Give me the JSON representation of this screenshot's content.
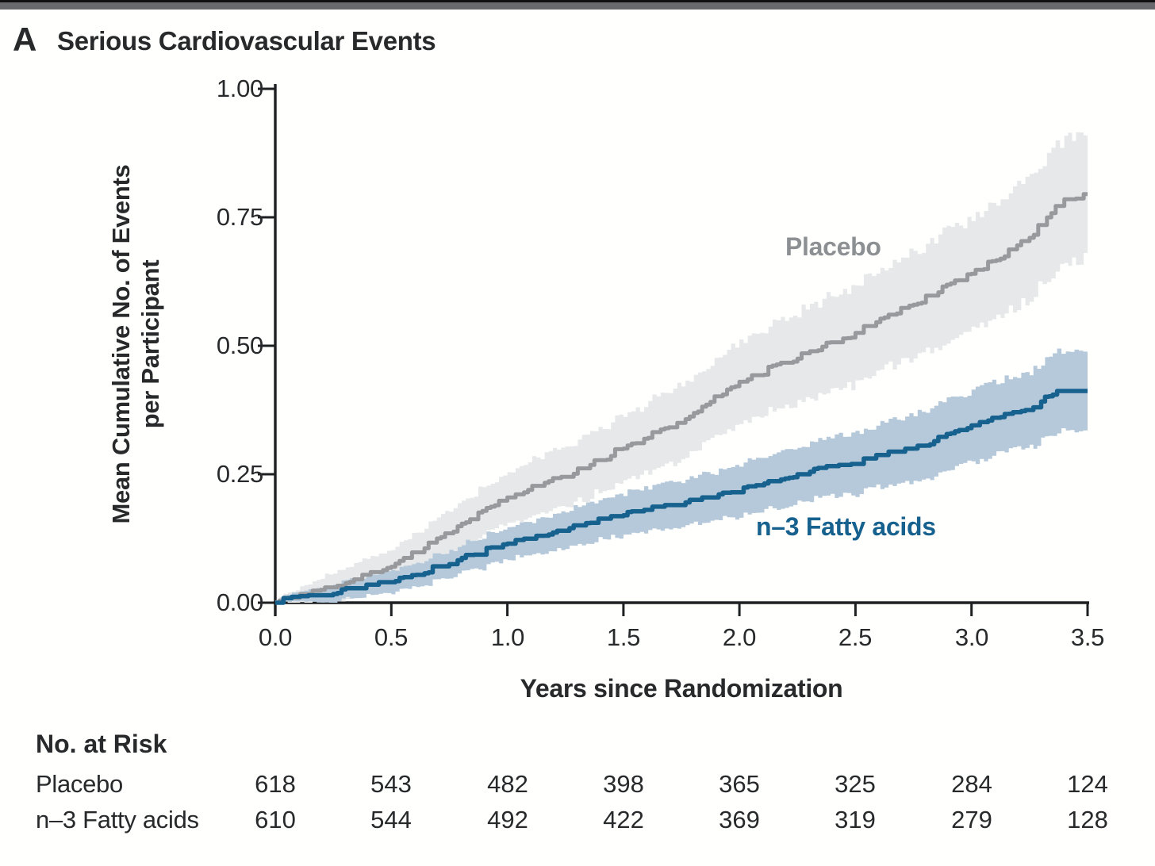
{
  "window": {
    "topbar_color": "#67696d"
  },
  "panel": {
    "label": "A",
    "title": "Serious Cardiovascular Events"
  },
  "chart_data": {
    "type": "line",
    "subtype": "step-cumulative-incidence-with-confidence-bands",
    "title": "Serious Cardiovascular Events",
    "xlabel": "Years since Randomization",
    "ylabel": "Mean Cumulative No. of Events per Participant",
    "ylabel_lines": [
      "Mean Cumulative No. of Events",
      "per Participant"
    ],
    "xlim": [
      0,
      3.5
    ],
    "ylim": [
      0,
      1.0
    ],
    "xticks": [
      "0.0",
      "0.5",
      "1.0",
      "1.5",
      "2.0",
      "2.5",
      "3.0",
      "3.5"
    ],
    "yticks": [
      "0.00",
      "0.25",
      "0.50",
      "0.75",
      "1.00"
    ],
    "grid": false,
    "legend_position": "inline-labels",
    "axis_color": "#1d1f21",
    "series": [
      {
        "name": "Placebo",
        "color": "#97999c",
        "band_color": "#e6e8ea",
        "label_color": "#8d9093",
        "x": [
          0,
          0.25,
          0.5,
          0.75,
          1.0,
          1.25,
          1.5,
          1.75,
          2.0,
          2.25,
          2.5,
          2.75,
          3.0,
          3.25,
          3.4,
          3.5
        ],
        "y": [
          0,
          0.03,
          0.07,
          0.135,
          0.205,
          0.245,
          0.3,
          0.35,
          0.43,
          0.475,
          0.525,
          0.58,
          0.64,
          0.71,
          0.785,
          0.795
        ],
        "ci_halfwidth": [
          0.005,
          0.028,
          0.035,
          0.043,
          0.05,
          0.058,
          0.065,
          0.073,
          0.08,
          0.088,
          0.095,
          0.103,
          0.11,
          0.118,
          0.122,
          0.125
        ]
      },
      {
        "name": "n–3 Fatty acids",
        "color": "#16618e",
        "band_color": "#b5c9da",
        "label_color": "#16618e",
        "x": [
          0,
          0.25,
          0.5,
          0.75,
          1.0,
          1.25,
          1.5,
          1.75,
          2.0,
          2.25,
          2.5,
          2.75,
          3.0,
          3.25,
          3.35,
          3.5
        ],
        "y": [
          0,
          0.017,
          0.04,
          0.075,
          0.115,
          0.14,
          0.17,
          0.19,
          0.215,
          0.25,
          0.27,
          0.3,
          0.345,
          0.375,
          0.405,
          0.412
        ],
        "ci_halfwidth": [
          0.004,
          0.017,
          0.022,
          0.026,
          0.031,
          0.036,
          0.041,
          0.045,
          0.05,
          0.055,
          0.06,
          0.064,
          0.069,
          0.074,
          0.076,
          0.079
        ]
      }
    ]
  },
  "risk_table": {
    "header": "No. at Risk",
    "rows": [
      {
        "label": "Placebo",
        "values": [
          "618",
          "543",
          "482",
          "398",
          "365",
          "325",
          "284",
          "124"
        ]
      },
      {
        "label": "n–3 Fatty acids",
        "values": [
          "610",
          "544",
          "492",
          "422",
          "369",
          "319",
          "279",
          "128"
        ]
      }
    ]
  }
}
